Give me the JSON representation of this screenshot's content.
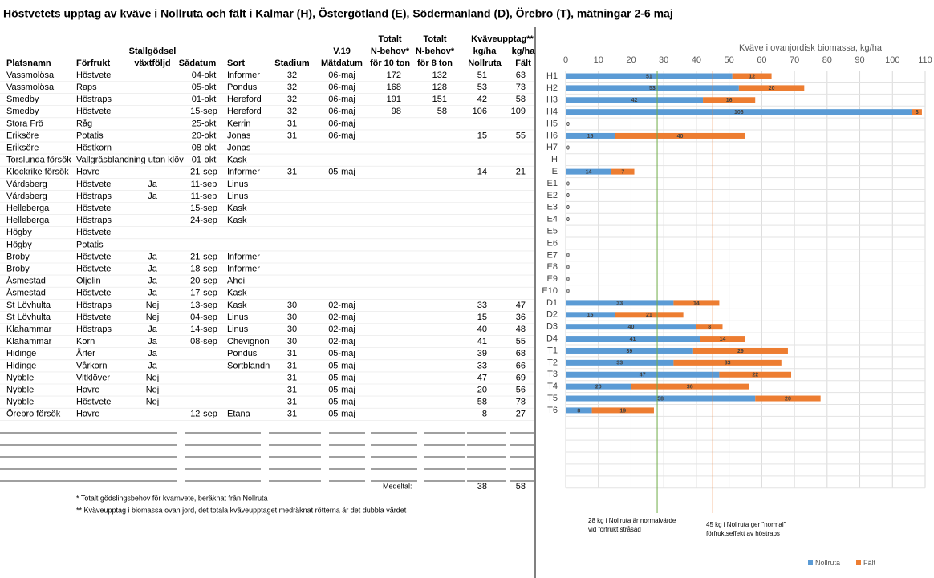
{
  "title": "Höstvetets upptag av kväve i Nollruta och fält i Kalmar (H), Östergötland (E), Södermanland (D), Örebro (T), mätningar 2-6 maj",
  "table": {
    "group_header": "Kväveupptag**",
    "header": [
      [
        "Platsnamn"
      ],
      [
        "Förfrukt"
      ],
      [
        "Stallgödsel",
        "växtföljd"
      ],
      [
        "Sådatum"
      ],
      [
        "Sort"
      ],
      [
        "Stadium"
      ],
      [
        "V.19",
        "Mätdatum"
      ],
      [
        "Totalt",
        "N-behov*",
        "för 10 ton"
      ],
      [
        "Totalt",
        "N-behov*",
        "för 8 ton"
      ],
      [
        "kg/ha",
        "Nollruta"
      ],
      [
        "kg/ha",
        "Fält"
      ]
    ],
    "rows": [
      [
        "Vassmolösa",
        "Höstvete",
        null,
        "04-okt",
        "Informer",
        32,
        "06-maj",
        172,
        132,
        51,
        63
      ],
      [
        "Vassmolösa",
        "Raps",
        null,
        "05-okt",
        "Pondus",
        32,
        "06-maj",
        168,
        128,
        53,
        73
      ],
      [
        "Smedby",
        "Höstraps",
        null,
        "01-okt",
        "Hereford",
        32,
        "06-maj",
        191,
        151,
        42,
        58
      ],
      [
        "Smedby",
        "Höstvete",
        null,
        "15-sep",
        "Hereford",
        32,
        "06-maj",
        98,
        58,
        106,
        109
      ],
      [
        "Stora Frö",
        "Råg",
        null,
        "25-okt",
        "Kerrin",
        31,
        "06-maj",
        null,
        null,
        null,
        null
      ],
      [
        "Eriksöre",
        "Potatis",
        null,
        "20-okt",
        "Jonas",
        31,
        "06-maj",
        null,
        null,
        15,
        55
      ],
      [
        "Eriksöre",
        "Höstkorn",
        null,
        "08-okt",
        "Jonas",
        null,
        null,
        null,
        null,
        null,
        null
      ],
      [
        "Torslunda försök",
        "Vallgräsblandning utan klöv",
        null,
        "01-okt",
        "Kask",
        null,
        null,
        null,
        null,
        null,
        null
      ],
      [
        "Klockrike försök",
        "Havre",
        null,
        "21-sep",
        "Informer",
        31,
        "05-maj",
        null,
        null,
        14,
        21
      ],
      [
        "Vårdsberg",
        "Höstvete",
        "Ja",
        "11-sep",
        "Linus",
        null,
        null,
        null,
        null,
        null,
        null
      ],
      [
        "Vårdsberg",
        "Höstraps",
        "Ja",
        "11-sep",
        "Linus",
        null,
        null,
        null,
        null,
        null,
        null
      ],
      [
        "Helleberga",
        "Höstvete",
        null,
        "15-sep",
        "Kask",
        null,
        null,
        null,
        null,
        null,
        null
      ],
      [
        "Helleberga",
        "Höstraps",
        null,
        "24-sep",
        "Kask",
        null,
        null,
        null,
        null,
        null,
        null
      ],
      [
        "Högby",
        "Höstvete",
        null,
        null,
        null,
        null,
        null,
        null,
        null,
        null,
        null
      ],
      [
        "Högby",
        "Potatis",
        null,
        null,
        null,
        null,
        null,
        null,
        null,
        null,
        null
      ],
      [
        "Broby",
        "Höstvete",
        "Ja",
        "21-sep",
        "Informer",
        null,
        null,
        null,
        null,
        null,
        null
      ],
      [
        "Broby",
        "Höstvete",
        "Ja",
        "18-sep",
        "Informer",
        null,
        null,
        null,
        null,
        null,
        null
      ],
      [
        "Åsmestad",
        "Oljelin",
        "Ja",
        "20-sep",
        "Ahoi",
        null,
        null,
        null,
        null,
        null,
        null
      ],
      [
        "Åsmestad",
        "Höstvete",
        "Ja",
        "17-sep",
        "Kask",
        null,
        null,
        null,
        null,
        null,
        null
      ],
      [
        "St Lövhulta",
        "Höstraps",
        "Nej",
        "13-sep",
        "Kask",
        30,
        "02-maj",
        null,
        null,
        33,
        47
      ],
      [
        "St Lövhulta",
        "Höstvete",
        "Nej",
        "04-sep",
        "Linus",
        30,
        "02-maj",
        null,
        null,
        15,
        36
      ],
      [
        "Klahammar",
        "Höstraps",
        "Ja",
        "14-sep",
        "Linus",
        30,
        "02-maj",
        null,
        null,
        40,
        48
      ],
      [
        "Klahammar",
        "Korn",
        "Ja",
        "08-sep",
        "Chevignon",
        30,
        "02-maj",
        null,
        null,
        41,
        55
      ],
      [
        "Hidinge",
        "Ärter",
        "Ja",
        null,
        "Pondus",
        31,
        "05-maj",
        null,
        null,
        39,
        68
      ],
      [
        "Hidinge",
        "Vårkorn",
        "Ja",
        null,
        "Sortblandn",
        31,
        "05-maj",
        null,
        null,
        33,
        66
      ],
      [
        "Nybble",
        "Vitklöver",
        "Nej",
        null,
        null,
        31,
        "05-maj",
        null,
        null,
        47,
        69
      ],
      [
        "Nybble",
        "Havre",
        "Nej",
        null,
        null,
        31,
        "05-maj",
        null,
        null,
        20,
        56
      ],
      [
        "Nybble",
        "Höstvete",
        "Nej",
        null,
        null,
        31,
        "05-maj",
        null,
        null,
        58,
        78
      ],
      [
        "Örebro försök",
        "Havre",
        null,
        "12-sep",
        "Etana",
        31,
        "05-maj",
        null,
        null,
        8,
        27
      ]
    ],
    "average": {
      "label": "Medeltal:",
      "values": [
        38,
        58
      ]
    },
    "footnotes": [
      "* Totalt gödslingsbehov för kvarnvete, beräknat från Nollruta",
      "** Kväveupptag i biomassa ovan jord, det totala kväveupptaget medräknat rötterna är det dubbla värdet"
    ]
  },
  "chart_data": {
    "type": "bar",
    "orientation": "horizontal",
    "stacked": true,
    "title": "Kväve i ovanjordisk biomassa, kg/ha",
    "categories": [
      "H1",
      "H2",
      "H3",
      "H4",
      "H5",
      "H6",
      "H7",
      "H",
      "E",
      "E1",
      "E2",
      "E3",
      "E4",
      "E5",
      "E6",
      "E7",
      "E8",
      "E9",
      "E10",
      "D1",
      "D2",
      "D3",
      "D4",
      "T1",
      "T2",
      "T3",
      "T4",
      "T5",
      "T6",
      null,
      null,
      null,
      null,
      null,
      null
    ],
    "series": [
      {
        "name": "Nollruta",
        "color": "#5b9bd5",
        "values": [
          51,
          53,
          42,
          106,
          0,
          15,
          0,
          null,
          14,
          0,
          0,
          0,
          0,
          null,
          null,
          0,
          0,
          0,
          0,
          33,
          15,
          40,
          41,
          39,
          33,
          47,
          20,
          58,
          8,
          null,
          null,
          null,
          null,
          null,
          null
        ]
      },
      {
        "name": "Fält",
        "color": "#ed7d31",
        "values": [
          12,
          20,
          16,
          3,
          null,
          40,
          null,
          null,
          7,
          null,
          null,
          null,
          null,
          null,
          null,
          null,
          null,
          null,
          null,
          14,
          21,
          8,
          14,
          29,
          33,
          22,
          36,
          20,
          19,
          null,
          null,
          null,
          null,
          null,
          null
        ]
      }
    ],
    "xlim": [
      0,
      110
    ],
    "xticks": [
      0,
      10,
      20,
      30,
      40,
      50,
      60,
      70,
      80,
      90,
      100,
      110
    ],
    "grid": true,
    "legend": "bottom",
    "annotations": [
      {
        "x": 28,
        "color": "#70ad47",
        "text": [
          "28 kg i Nollruta är normalvärde",
          "vid förfrukt stråsäd"
        ]
      },
      {
        "x": 45,
        "color": "#ed7d31",
        "text": [
          "45 kg i Nollruta ger \"normal\"",
          "förfruktseffekt av höstraps"
        ]
      }
    ]
  }
}
